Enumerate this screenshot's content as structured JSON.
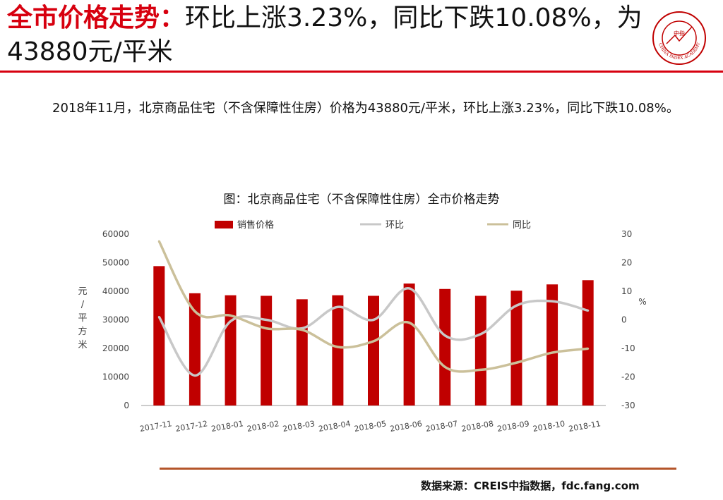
{
  "header": {
    "title_highlight": "全市价格走势：",
    "title_rest": "环比上涨3.23%，同比下跌10.08%，为43880元/平米"
  },
  "body_text": "2018年11月，北京商品住宅（不含保障性住房）价格为43880元/平米，环比上涨3.23%，同比下跌10.08%。",
  "chart_data": {
    "type": "bar",
    "title": "图：北京商品住宅（不含保障性住房）全市价格走势",
    "categories": [
      "2017-11",
      "2017-12",
      "2018-01",
      "2018-02",
      "2018-03",
      "2018-04",
      "2018-05",
      "2018-06",
      "2018-07",
      "2018-08",
      "2018-09",
      "2018-10",
      "2018-11"
    ],
    "series": [
      {
        "name": "销售价格",
        "type": "bar",
        "axis": "left",
        "color": "#c00000",
        "values": [
          48800,
          39300,
          38600,
          38400,
          37200,
          38600,
          38400,
          42700,
          40800,
          38400,
          40200,
          42400,
          43880
        ]
      },
      {
        "name": "环比",
        "type": "line",
        "axis": "right",
        "color": "#c8c8c8",
        "values": [
          1,
          -19.5,
          -0.5,
          0,
          -3,
          4.5,
          0,
          11,
          -5.5,
          -5,
          5,
          6.5,
          3.23
        ]
      },
      {
        "name": "同比",
        "type": "line",
        "axis": "right",
        "color": "#cbc09a",
        "values": [
          27.5,
          3,
          1.5,
          -3,
          -3.5,
          -9.5,
          -7.5,
          -1,
          -16.5,
          -17.5,
          -15,
          -11.5,
          -10.08
        ]
      }
    ],
    "ylabel": "元/平方米",
    "ylabel_right": "%",
    "ylim": [
      0,
      60000
    ],
    "ylim_right": [
      -30,
      30
    ],
    "y_ticks": [
      "0",
      "10000",
      "20000",
      "30000",
      "40000",
      "50000",
      "60000"
    ],
    "y_ticks_right": [
      "-30",
      "-20",
      "-10",
      "0",
      "10",
      "20",
      "30"
    ],
    "grid": false,
    "legend_position": "top"
  },
  "footer": {
    "source": "数据来源：CREIS中指数据，fdc.fang.com"
  },
  "logo": {
    "center_text": "中指",
    "ring_text": "CHINA INDEX ACADEMY",
    "accent_color": "#c00000"
  }
}
